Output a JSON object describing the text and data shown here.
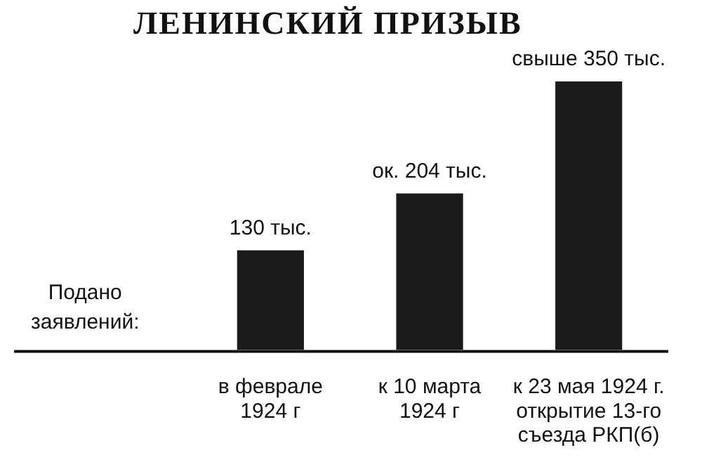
{
  "chart_data": {
    "type": "bar",
    "title": "ЛЕНИНСКИЙ ПРИЗЫВ",
    "categories": [
      "в феврале\n1924 г",
      "к 10 марта\n1924 г",
      "к 23 мая 1924 г.\nоткрытие 13-го\nсъезда РКП(б)"
    ],
    "values": [
      130,
      204,
      350
    ],
    "value_labels": [
      "130 тыс.",
      "ок. 204 тыс.",
      "свыше 350 тыс."
    ],
    "color": "#1a1a1a",
    "annotations": [
      "Подано\nзаявлений:"
    ],
    "legend": false
  }
}
